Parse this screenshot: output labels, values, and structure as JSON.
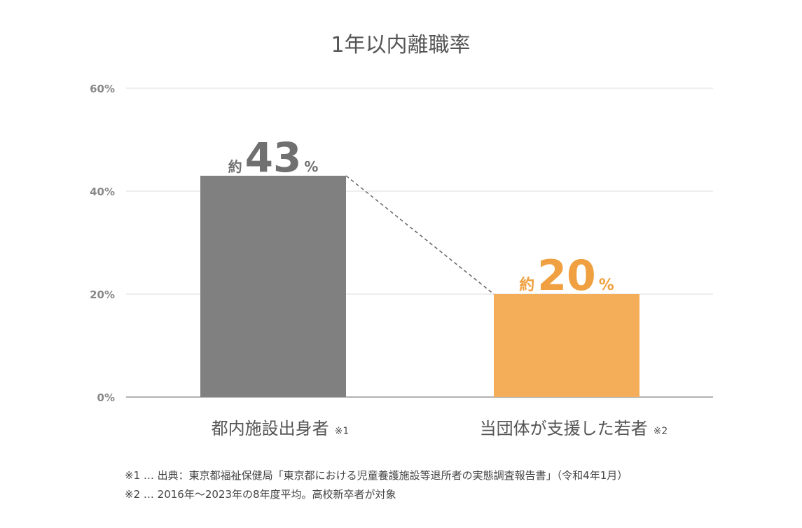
{
  "chart_data": {
    "type": "bar",
    "title": "1年以内離職率",
    "categories": [
      "都内施設出身者",
      "当団体が支援した若者"
    ],
    "category_notes": [
      "※1",
      "※2"
    ],
    "values": [
      43,
      20
    ],
    "value_prefix": "約",
    "value_unit": "%",
    "bar_colors": [
      "#808080",
      "#F4AE5A"
    ],
    "label_colors": [
      "#707070",
      "#F0A040"
    ],
    "y_ticks": [
      "0%",
      "20%",
      "40%",
      "60%"
    ],
    "y_tick_values": [
      0,
      20,
      40,
      60
    ],
    "ylim": [
      0,
      60
    ],
    "grid": true,
    "connector": "dashed line from top of first bar to top of second bar"
  },
  "footnotes": [
    "※1 … 出典：東京都福祉保健局「東京都における児童養護施設等退所者の実態調査報告書」（令和4年1月）",
    "※2 … 2016年～2023年の8年度平均。高校新卒者が対象"
  ]
}
